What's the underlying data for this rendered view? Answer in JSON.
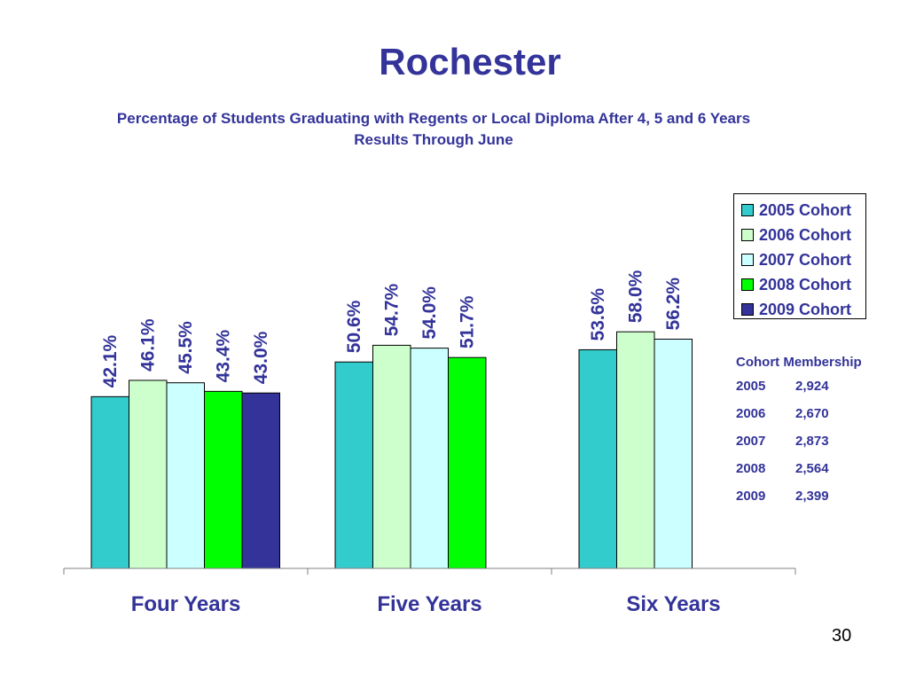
{
  "title": "Rochester",
  "subtitle_line1": "Percentage of Students Graduating with Regents or Local Diploma After 4, 5 and 6 Years",
  "subtitle_line2": "Results Through June",
  "page_number": "30",
  "chart_data": {
    "type": "bar",
    "categories": [
      "Four Years",
      "Five Years",
      "Six Years"
    ],
    "series": [
      {
        "name": "2005 Cohort",
        "color": "#33cccc",
        "values": [
          42.1,
          50.6,
          53.6
        ],
        "labels": [
          "42.1%",
          "50.6%",
          "53.6%"
        ]
      },
      {
        "name": "2006 Cohort",
        "color": "#ccffcc",
        "values": [
          46.1,
          54.7,
          58.0
        ],
        "labels": [
          "46.1%",
          "54.7%",
          "58.0%"
        ]
      },
      {
        "name": "2007 Cohort",
        "color": "#ccffff",
        "values": [
          45.5,
          54.0,
          56.2
        ],
        "labels": [
          "45.5%",
          "54.0%",
          "56.2%"
        ]
      },
      {
        "name": "2008 Cohort",
        "color": "#00ff00",
        "values": [
          43.4,
          51.7,
          null
        ],
        "labels": [
          "43.4%",
          "51.7%",
          ""
        ]
      },
      {
        "name": "2009 Cohort",
        "color": "#333399",
        "values": [
          43.0,
          null,
          null
        ],
        "labels": [
          "43.0%",
          "",
          ""
        ]
      }
    ],
    "xlabel": "",
    "ylabel": "",
    "ylim": [
      0,
      100
    ],
    "grid": false,
    "legend_position": "right"
  },
  "membership": {
    "heading": "Cohort Membership",
    "rows": [
      {
        "year": "2005",
        "count": "2,924"
      },
      {
        "year": "2006",
        "count": "2,670"
      },
      {
        "year": "2007",
        "count": "2,873"
      },
      {
        "year": "2008",
        "count": "2,564"
      },
      {
        "year": "2009",
        "count": "2,399"
      }
    ]
  }
}
